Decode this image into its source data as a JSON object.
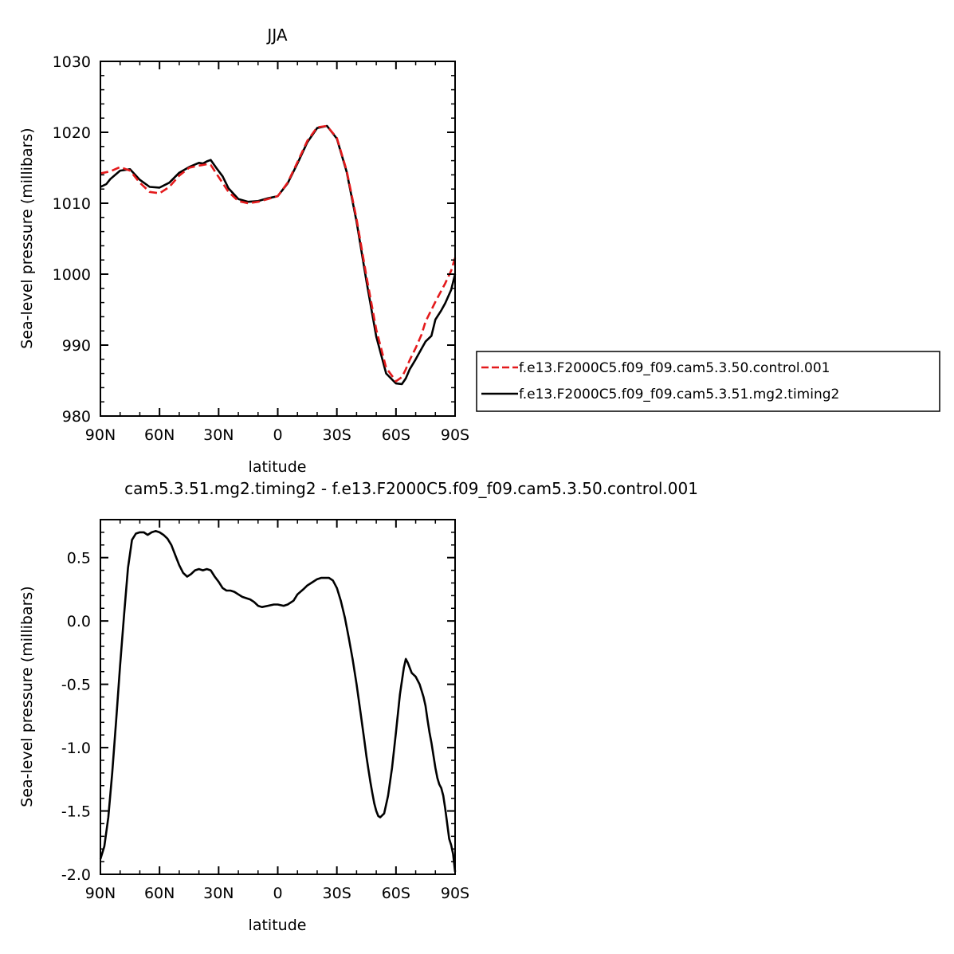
{
  "chart_data": [
    {
      "type": "line",
      "title": "JJA",
      "xlabel": "latitude",
      "ylabel": "Sea-level pressure (millibars)",
      "xlim": [
        -90,
        90
      ],
      "ylim": [
        980,
        1030
      ],
      "x_ticks": [
        -90,
        -60,
        -30,
        0,
        30,
        60,
        90
      ],
      "x_tick_labels": [
        "90N",
        "60N",
        "30N",
        "0",
        "30S",
        "60S",
        "90S"
      ],
      "y_ticks": [
        980,
        990,
        1000,
        1010,
        1020,
        1030
      ],
      "y_tick_labels": [
        "980",
        "990",
        "1000",
        "1010",
        "1020",
        "1030"
      ],
      "legend_position": "right",
      "series": [
        {
          "name": "f.e13.F2000C5.f09_f09.cam5.3.50.control.001",
          "color": "#e41a1c",
          "dash": "dashed",
          "x": [
            -90,
            -85,
            -80,
            -75,
            -70,
            -65,
            -60,
            -55,
            -50,
            -45,
            -40,
            -36,
            -34,
            -30,
            -25,
            -20,
            -15,
            -10,
            -5,
            0,
            5,
            10,
            15,
            20,
            25,
            30,
            35,
            40,
            45,
            50,
            55,
            60,
            63,
            65,
            67,
            70,
            73,
            75,
            80,
            85,
            88,
            90
          ],
          "values": [
            1014.2,
            1014.5,
            1015.1,
            1014.6,
            1012.9,
            1011.6,
            1011.4,
            1012.3,
            1013.9,
            1015.0,
            1015.3,
            1015.5,
            1015.4,
            1013.7,
            1011.6,
            1010.3,
            1010.0,
            1010.2,
            1010.6,
            1011.0,
            1012.9,
            1015.8,
            1018.8,
            1020.7,
            1020.9,
            1019.2,
            1014.6,
            1007.8,
            999.7,
            992.2,
            986.8,
            984.9,
            985.5,
            986.6,
            987.9,
            989.6,
            991.5,
            993.3,
            996.1,
            998.7,
            1000.5,
            1002.3
          ]
        },
        {
          "name": "f.e13.F2000C5.f09_f09.cam5.3.51.mg2.timing2",
          "color": "#000000",
          "dash": "solid",
          "x": [
            -90,
            -87,
            -85,
            -80,
            -75,
            -70,
            -65,
            -60,
            -55,
            -50,
            -45,
            -40,
            -38,
            -36,
            -34,
            -31,
            -28,
            -25,
            -20,
            -15,
            -10,
            -5,
            0,
            5,
            10,
            15,
            20,
            25,
            30,
            35,
            40,
            45,
            50,
            55,
            60,
            63,
            65,
            67,
            70,
            73,
            75,
            78,
            80,
            83,
            85,
            88,
            90
          ],
          "values": [
            1012.3,
            1012.7,
            1013.4,
            1014.6,
            1014.8,
            1013.3,
            1012.3,
            1012.2,
            1012.9,
            1014.3,
            1015.1,
            1015.7,
            1015.6,
            1015.9,
            1016.1,
            1014.9,
            1013.8,
            1012.1,
            1010.6,
            1010.2,
            1010.3,
            1010.7,
            1011.0,
            1012.8,
            1015.6,
            1018.6,
            1020.6,
            1020.9,
            1019.1,
            1014.4,
            1007.4,
            999.0,
            991.2,
            986.0,
            984.6,
            984.5,
            985.3,
            986.6,
            988.0,
            989.5,
            990.5,
            991.3,
            993.6,
            994.9,
            995.9,
            997.8,
            1000.0
          ]
        }
      ]
    },
    {
      "type": "line",
      "title": "cam5.3.51.mg2.timing2 - f.e13.F2000C5.f09_f09.cam5.3.50.control.001",
      "xlabel": "latitude",
      "ylabel": "Sea-level pressure (millibars)",
      "xlim": [
        -90,
        90
      ],
      "ylim": [
        -2.0,
        0.8
      ],
      "x_ticks": [
        -90,
        -60,
        -30,
        0,
        30,
        60,
        90
      ],
      "x_tick_labels": [
        "90N",
        "60N",
        "30N",
        "0",
        "30S",
        "60S",
        "90S"
      ],
      "y_ticks": [
        -2.0,
        -1.5,
        -1.0,
        -0.5,
        0.0,
        0.5
      ],
      "y_tick_labels": [
        "-2.0",
        "-1.5",
        "-1.0",
        "-0.5",
        "0.0",
        "0.5"
      ],
      "series": [
        {
          "color": "#000000",
          "dash": "solid",
          "x": [
            -90,
            -88,
            -86,
            -84,
            -82,
            -80,
            -78,
            -76,
            -74,
            -72,
            -70,
            -68,
            -66,
            -64,
            -62,
            -60,
            -58,
            -56,
            -54,
            -52,
            -50,
            -48,
            -46,
            -44,
            -42,
            -40,
            -38,
            -36,
            -34,
            -32,
            -30,
            -28,
            -26,
            -24,
            -22,
            -20,
            -18,
            -16,
            -14,
            -12,
            -10,
            -8,
            -5,
            -2,
            0,
            3,
            5,
            8,
            10,
            13,
            15,
            18,
            20,
            22,
            24,
            26,
            28,
            30,
            32,
            34,
            36,
            38,
            40,
            42,
            44,
            45,
            46,
            47,
            48,
            49,
            50,
            51,
            52,
            54,
            56,
            58,
            60,
            62,
            64,
            65,
            66,
            67,
            68,
            70,
            72,
            73,
            74,
            75,
            76,
            77,
            78,
            79,
            80,
            81,
            82,
            83,
            84,
            85,
            86,
            87,
            88,
            89,
            90
          ],
          "values": [
            -1.88,
            -1.78,
            -1.55,
            -1.2,
            -0.78,
            -0.35,
            0.05,
            0.42,
            0.64,
            0.69,
            0.7,
            0.7,
            0.68,
            0.7,
            0.71,
            0.7,
            0.68,
            0.65,
            0.6,
            0.52,
            0.44,
            0.38,
            0.35,
            0.37,
            0.4,
            0.41,
            0.4,
            0.41,
            0.4,
            0.35,
            0.31,
            0.26,
            0.24,
            0.24,
            0.23,
            0.21,
            0.19,
            0.18,
            0.17,
            0.15,
            0.12,
            0.11,
            0.12,
            0.13,
            0.13,
            0.12,
            0.13,
            0.16,
            0.21,
            0.25,
            0.28,
            0.31,
            0.33,
            0.34,
            0.34,
            0.34,
            0.32,
            0.26,
            0.16,
            0.03,
            -0.13,
            -0.3,
            -0.5,
            -0.72,
            -0.95,
            -1.07,
            -1.17,
            -1.27,
            -1.36,
            -1.44,
            -1.5,
            -1.54,
            -1.55,
            -1.52,
            -1.38,
            -1.16,
            -0.88,
            -0.58,
            -0.37,
            -0.3,
            -0.33,
            -0.37,
            -0.41,
            -0.44,
            -0.5,
            -0.55,
            -0.6,
            -0.67,
            -0.78,
            -0.88,
            -0.96,
            -1.06,
            -1.16,
            -1.24,
            -1.29,
            -1.32,
            -1.38,
            -1.48,
            -1.6,
            -1.72,
            -1.77,
            -1.84,
            -1.98
          ]
        }
      ]
    }
  ]
}
